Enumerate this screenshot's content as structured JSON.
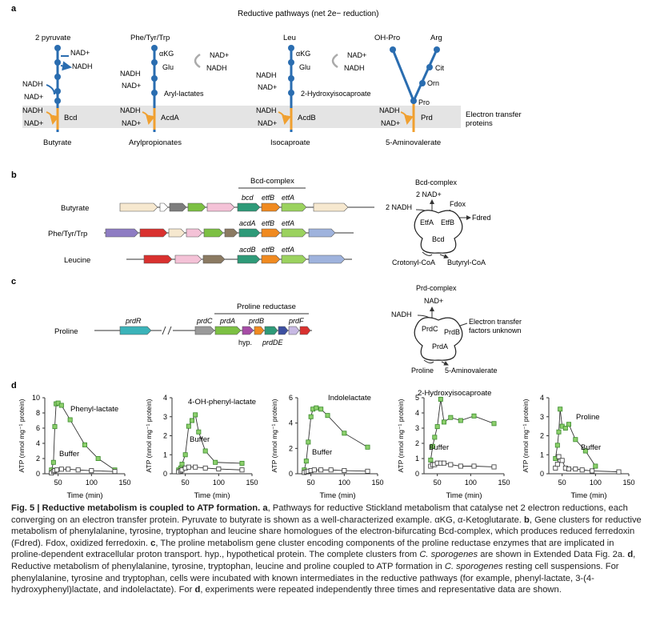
{
  "panel_a": {
    "letter": "a",
    "title": "Reductive pathways (net 2e− reduction)",
    "band_label_1": "Electron transfer",
    "band_label_2": "proteins",
    "pathways": [
      {
        "top": "2 pyruvate",
        "mid_a": "NAD+",
        "mid_b": "NADH",
        "side_a": "NADH",
        "side_b": "NAD+",
        "enzyme": "Bcd",
        "bottom": "Butyrate"
      },
      {
        "top": "Phe/Tyr/Trp",
        "mid_a": "αKG",
        "mid_b": "Glu",
        "mid_c": "NAD+",
        "mid_d": "NADH",
        "side_a": "NADH",
        "side_b": "NAD+",
        "inter": "Aryl-lactates",
        "enzyme": "AcdA",
        "bottom": "Arylpropionates"
      },
      {
        "top": "Leu",
        "mid_a": "αKG",
        "mid_b": "Glu",
        "mid_c": "NAD+",
        "mid_d": "NADH",
        "side_a": "NADH",
        "side_b": "NAD+",
        "inter": "2-Hydroxyisocaproate",
        "enzyme": "AcdB",
        "bottom": "Isocaproate"
      },
      {
        "top_a": "OH-Pro",
        "top_b": "Arg",
        "cit": "Cit",
        "orn": "Orn",
        "pro": "Pro",
        "side_a": "NADH",
        "side_b": "NAD+",
        "enzyme": "Prd",
        "bottom": "5-Aminovalerate"
      }
    ]
  },
  "panel_b": {
    "letter": "b",
    "cluster_label": "Bcd-complex",
    "rows": [
      {
        "label": "Butyrate",
        "genes": [
          "bcd",
          "etfB",
          "etfA"
        ]
      },
      {
        "label": "Phe/Tyr/Trp",
        "genes": [
          "acdA",
          "etfB",
          "etfA"
        ]
      },
      {
        "label": "Leucine",
        "genes": [
          "acdB",
          "etfB",
          "etfA"
        ]
      }
    ],
    "complex": {
      "title": "Bcd-complex",
      "nad": "2 NAD+",
      "nadh": "2 NADH",
      "fdox": "Fdox",
      "fdred": "Fdred",
      "etfa": "EtfA",
      "etfb": "EtfB",
      "bcd": "Bcd",
      "sub": "Crotonyl-CoA",
      "prod": "Butyryl-CoA"
    }
  },
  "panel_c": {
    "letter": "c",
    "cluster_label": "Proline reductase",
    "row_label": "Proline",
    "genes": [
      "prdR",
      "prdC",
      "prdA",
      "prdB",
      "prdF"
    ],
    "hyp": "hyp.",
    "prdde": "prdDE",
    "complex": {
      "title": "Prd-complex",
      "nad": "NAD+",
      "nadh": "NADH",
      "unknown_1": "Electron transfer",
      "unknown_2": "factors unknown",
      "prdc": "PrdC",
      "prdb": "PrdB",
      "prda": "PrdA",
      "sub": "Proline",
      "prod": "5-Aminovalerate"
    }
  },
  "panel_d": {
    "letter": "d",
    "xlabel": "Time (min)",
    "ylabel": "ATP (nmol mg⁻¹ protein)",
    "buffer_label": "Buffer"
  },
  "chart_data": [
    {
      "type": "line",
      "title": "Phenyl-lactate",
      "xlabel": "Time (min)",
      "ylabel": "ATP (nmol mg⁻¹ protein)",
      "xlim": [
        30,
        150
      ],
      "ylim": [
        0,
        10
      ],
      "xticks": [
        50,
        100,
        150
      ],
      "yticks": [
        0,
        2,
        4,
        6,
        8,
        10
      ],
      "series": [
        {
          "name": "Phenyl-lactate",
          "x": [
            40,
            43,
            45,
            47,
            50,
            55,
            68,
            90,
            110,
            135
          ],
          "y": [
            0.5,
            1.5,
            6.2,
            9.2,
            9.3,
            9.0,
            7.1,
            3.8,
            2.0,
            0.5
          ]
        },
        {
          "name": "Buffer",
          "x": [
            40,
            43,
            45,
            48,
            55,
            65,
            80,
            100,
            135
          ],
          "y": [
            0.1,
            0.3,
            0.4,
            0.5,
            0.6,
            0.6,
            0.5,
            0.4,
            0.3
          ]
        }
      ]
    },
    {
      "type": "line",
      "title": "4-OH-phenyl-lactate",
      "xlabel": "Time (min)",
      "ylabel": "ATP (nmol mg⁻¹ protein)",
      "xlim": [
        30,
        150
      ],
      "ylim": [
        0,
        4
      ],
      "xticks": [
        50,
        100,
        150
      ],
      "yticks": [
        0,
        1,
        2,
        3,
        4
      ],
      "series": [
        {
          "name": "4-OH-phenyl-lactate",
          "x": [
            40,
            43,
            45,
            50,
            55,
            60,
            65,
            70,
            80,
            95,
            135
          ],
          "y": [
            0.2,
            0.3,
            0.5,
            1.0,
            2.5,
            2.8,
            3.1,
            2.2,
            1.2,
            0.6,
            0.55
          ]
        },
        {
          "name": "Buffer",
          "x": [
            40,
            43,
            45,
            50,
            55,
            65,
            80,
            100,
            135
          ],
          "y": [
            0.1,
            0.15,
            0.2,
            0.3,
            0.35,
            0.35,
            0.3,
            0.25,
            0.2
          ]
        }
      ]
    },
    {
      "type": "line",
      "title": "Indolelactate",
      "xlabel": "Time (min)",
      "ylabel": "ATP (nmol mg⁻¹ protein)",
      "xlim": [
        30,
        150
      ],
      "ylim": [
        0,
        6
      ],
      "xticks": [
        50,
        100,
        150
      ],
      "yticks": [
        0,
        2,
        4,
        6
      ],
      "series": [
        {
          "name": "Indolelactate",
          "x": [
            40,
            43,
            46,
            50,
            53,
            58,
            65,
            75,
            100,
            135
          ],
          "y": [
            0.3,
            1.0,
            2.5,
            4.5,
            5.1,
            5.2,
            5.1,
            4.6,
            3.2,
            2.1
          ]
        },
        {
          "name": "Buffer",
          "x": [
            40,
            43,
            46,
            50,
            55,
            65,
            80,
            100,
            135
          ],
          "y": [
            0.1,
            0.15,
            0.2,
            0.25,
            0.3,
            0.3,
            0.3,
            0.25,
            0.2
          ]
        }
      ]
    },
    {
      "type": "line",
      "title": "2-Hydroxyisocaproate",
      "xlabel": "Time (min)",
      "ylabel": "ATP (nmol mg⁻¹ protein)",
      "xlim": [
        30,
        150
      ],
      "ylim": [
        0,
        5
      ],
      "xticks": [
        50,
        100,
        150
      ],
      "yticks": [
        0,
        1,
        2,
        3,
        4,
        5
      ],
      "series": [
        {
          "name": "2-Hydroxyisocaproate",
          "x": [
            40,
            43,
            46,
            50,
            55,
            60,
            70,
            85,
            105,
            135
          ],
          "y": [
            0.9,
            1.8,
            2.4,
            3.1,
            4.9,
            3.4,
            3.7,
            3.5,
            3.8,
            3.3
          ]
        },
        {
          "name": "Buffer",
          "x": [
            40,
            43,
            46,
            50,
            55,
            60,
            70,
            85,
            105,
            135
          ],
          "y": [
            0.5,
            0.6,
            0.6,
            0.7,
            0.7,
            0.7,
            0.6,
            0.5,
            0.5,
            0.45
          ]
        }
      ]
    },
    {
      "type": "line",
      "title": "Proline",
      "xlabel": "Time (min)",
      "ylabel": "ATP (nmol mg⁻¹ protein)",
      "xlim": [
        30,
        150
      ],
      "ylim": [
        0,
        4
      ],
      "xticks": [
        50,
        100,
        150
      ],
      "yticks": [
        0,
        1,
        2,
        3,
        4
      ],
      "series": [
        {
          "name": "Proline",
          "x": [
            40,
            43,
            45,
            47,
            50,
            55,
            60,
            70,
            85,
            100
          ],
          "y": [
            0.8,
            1.5,
            2.2,
            3.4,
            2.5,
            2.4,
            2.6,
            1.8,
            1.2,
            0.4
          ]
        },
        {
          "name": "Buffer",
          "x": [
            40,
            43,
            45,
            50,
            55,
            60,
            70,
            80,
            95,
            135
          ],
          "y": [
            0.3,
            0.5,
            0.9,
            0.7,
            0.3,
            0.25,
            0.25,
            0.2,
            0.15,
            0.1
          ]
        }
      ]
    }
  ],
  "caption": {
    "title": "Fig. 5 | Reductive metabolism is coupled to ATP formation.",
    "a_letter": "a",
    "text_a": ", Pathways for reductive Stickland metabolism that catalyse net 2 electron reductions, each converging on an electron transfer protein. Pyruvate to butyrate is shown as a well-characterized example. αKG, α-Ketoglutarate. ",
    "b_letter": "b",
    "text_b": ", Gene clusters for reductive metabolism of phenylalanine, tyrosine, tryptophan and leucine share homologues of the electron-bifurcating Bcd-complex, which produces reduced ferredoxin (Fdred). Fdox, oxidized ferredoxin. ",
    "c_letter": "c",
    "text_c": ", The proline metabolism gene cluster encoding components of the proline reductase enzymes that are implicated in proline-dependent extracellular proton transport. hyp., hypothetical protein. The complete clusters from ",
    "species": "C. sporogenes",
    "text_c2": " are shown in Extended Data Fig. 2a. ",
    "d_letter": "d",
    "text_d": ", Reductive metabolism of phenylalanine, tyrosine, tryptophan, leucine and proline coupled to ATP formation in ",
    "species2": "C. sporogenes",
    "text_d2": " resting cell suspensions. For phenylalanine, tyrosine and tryptophan, cells were incubated with known intermediates in the reductive pathways (for example, phenyl-lactate, 3-(4-hydroxyphenyl)lactate, and indolelactate). For ",
    "d_letter2": "d",
    "text_end": ", experiments were repeated independently three times and representative data are shown."
  }
}
